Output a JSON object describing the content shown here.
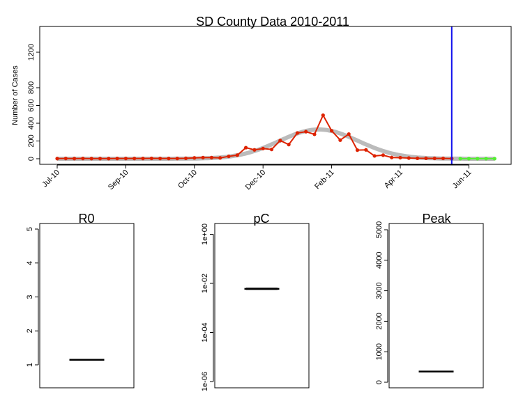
{
  "chart_data": [
    {
      "type": "line",
      "title": "SD County Data 2010-2011",
      "xlabel": "",
      "ylabel": "Number of Cases",
      "ylim": [
        0,
        1200
      ],
      "yticks": [
        0,
        200,
        400,
        600,
        800,
        1200
      ],
      "xtick_labels": [
        "Jul-10",
        "Sep-10",
        "Oct-10",
        "Dec-10",
        "Feb-11",
        "Apr-11",
        "Jun-11"
      ],
      "xtick_week_index": [
        0,
        8,
        16,
        24,
        32,
        40,
        48
      ],
      "cutoff_week_index": 46,
      "grid": false,
      "colors": {
        "observed": "#dd2200",
        "forecast": "#55ee33",
        "fit": "#bbbbbb",
        "cutoff": "#1111ee"
      },
      "series": [
        {
          "kind": "observed",
          "x": [
            0,
            1,
            2,
            3,
            4,
            5,
            6,
            7,
            8,
            9,
            10,
            11,
            12,
            13,
            14,
            15,
            16,
            17,
            18,
            19,
            20,
            21,
            22,
            23,
            24,
            25,
            26,
            27,
            28,
            29,
            30,
            31,
            32,
            33,
            34,
            35,
            36,
            37,
            38,
            39,
            40,
            41,
            42,
            43,
            44,
            45,
            46
          ],
          "values": [
            2,
            3,
            2,
            3,
            2,
            2,
            2,
            3,
            3,
            3,
            3,
            4,
            3,
            3,
            3,
            5,
            10,
            13,
            13,
            10,
            27,
            40,
            125,
            100,
            115,
            105,
            205,
            160,
            290,
            305,
            275,
            490,
            315,
            210,
            278,
            97,
            100,
            32,
            40,
            14,
            12,
            8,
            5,
            5,
            4,
            4,
            2
          ]
        },
        {
          "kind": "forecast",
          "x": [
            47,
            48,
            49,
            50,
            51
          ],
          "values": [
            1,
            1,
            1,
            1,
            1
          ]
        },
        {
          "kind": "fit",
          "center_week": 30.5,
          "peak": 330,
          "width_weeks": 4.6
        }
      ]
    },
    {
      "type": "box",
      "title": "R0",
      "ylim": [
        0.3,
        5.2
      ],
      "yticks": [
        1,
        2,
        3,
        4,
        5
      ],
      "ytick_labels": [
        "1",
        "2",
        "3",
        "4",
        "5"
      ],
      "median": 1.15
    },
    {
      "type": "box",
      "title": "pC",
      "log_scale": true,
      "ylim": [
        1e-06,
        1.3
      ],
      "yticks": [
        1e-06,
        0.0001,
        0.01,
        1
      ],
      "ytick_labels": [
        "1e-06",
        "1e-04",
        "1e-02",
        "1e+00"
      ],
      "median": 0.006,
      "q1": 0.0055,
      "q3": 0.0066
    },
    {
      "type": "box",
      "title": "Peak",
      "ylim": [
        -150,
        5200
      ],
      "yticks": [
        0,
        1000,
        2000,
        3000,
        4000,
        5000
      ],
      "ytick_labels": [
        "0",
        "1000",
        "2000",
        "3000",
        "4000",
        "5000"
      ],
      "median": 350
    }
  ]
}
